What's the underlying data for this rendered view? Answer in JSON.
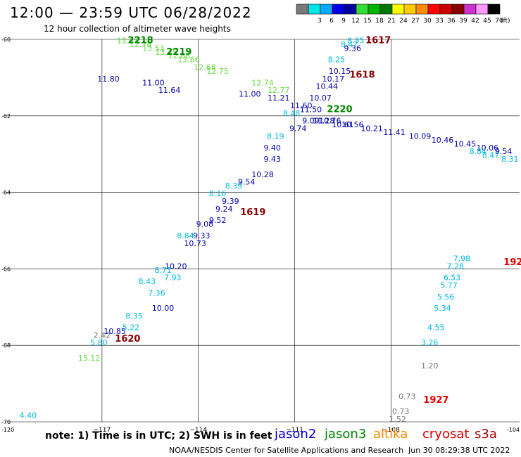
{
  "title": "12:00 — 23:59 UTC 06/28/2022",
  "subtitle": "12 hour collection of altimeter wave heights",
  "legend": {
    "unit": "(ft)",
    "bins": [
      {
        "color": "#7a7a7a",
        "label": ""
      },
      {
        "color": "#00e6e6",
        "label": "3"
      },
      {
        "color": "#00aaff",
        "label": "6"
      },
      {
        "color": "#0000e6",
        "label": "9"
      },
      {
        "color": "#0000a0",
        "label": "12"
      },
      {
        "color": "#33dd33",
        "label": "15"
      },
      {
        "color": "#00b400",
        "label": "18"
      },
      {
        "color": "#007800",
        "label": "21"
      },
      {
        "color": "#ffff00",
        "label": "24"
      },
      {
        "color": "#ffcc00",
        "label": "27"
      },
      {
        "color": "#ff8c00",
        "label": "30"
      },
      {
        "color": "#ff0000",
        "label": "33"
      },
      {
        "color": "#cc0000",
        "label": "36"
      },
      {
        "color": "#880000",
        "label": "39"
      },
      {
        "color": "#cc33cc",
        "label": "42"
      },
      {
        "color": "#ff99ff",
        "label": "45"
      },
      {
        "color": "#000000",
        "label": "70"
      }
    ]
  },
  "note": "note: 1) Time is in UTC; 2) SWH is in feet",
  "satellites": [
    {
      "name": "jason2",
      "color": "#0000cc"
    },
    {
      "name": "jason3",
      "color": "#008800"
    },
    {
      "name": "altika",
      "color": "#ff8800"
    },
    {
      "name": "cryosat",
      "color": "#dd0000"
    },
    {
      "name": "s3a",
      "color": "#aa0000"
    }
  ],
  "credit": "NOAA/NESDIS Center for Satellite Applications and Research",
  "timestamp": "Jun 30 08:29:38 UTC 2022",
  "chart_data": {
    "type": "scatter",
    "xlim": [
      -120,
      -104
    ],
    "ylim": [
      -70,
      -60
    ],
    "x_ticks": [
      -117,
      -114,
      -111,
      -108
    ],
    "y_ticks": [
      -60,
      -62,
      -64,
      -66,
      -68,
      -70
    ],
    "x_tick_labels": [
      "−117",
      "−114",
      "−111",
      "−108"
    ],
    "y_tick_labels": [
      "-60",
      "-62",
      "-64",
      "-66",
      "-68",
      "-70"
    ],
    "corner_labels": {
      "x_left": "-120",
      "x_right": "-104"
    },
    "grid": true,
    "series": [
      {
        "color": "#0000aa",
        "points": [
          {
            "lon": -110.5,
            "lat": -62.2,
            "label": "9.09"
          },
          {
            "lon": -110.1,
            "lat": -62.2,
            "label": "11.28"
          },
          {
            "lon": -109.2,
            "lat": -62.3,
            "label": "10.56"
          },
          {
            "lon": -108.6,
            "lat": -62.4,
            "label": "10.21"
          },
          {
            "lon": -107.9,
            "lat": -62.5,
            "label": "11.41"
          },
          {
            "lon": -107.1,
            "lat": -62.6,
            "label": "10.09"
          },
          {
            "lon": -106.4,
            "lat": -62.7,
            "label": "10.46"
          },
          {
            "lon": -105.7,
            "lat": -62.8,
            "label": "10.45"
          },
          {
            "lon": -105.0,
            "lat": -62.9,
            "label": "10.06"
          },
          {
            "lon": -104.5,
            "lat": -63.0,
            "label": "9.54"
          },
          {
            "lon": -109.2,
            "lat": -60.3,
            "label": "9.36"
          },
          {
            "lon": -109.6,
            "lat": -60.9,
            "label": "10.15"
          },
          {
            "lon": -109.8,
            "lat": -61.1,
            "label": "10.17"
          },
          {
            "lon": -110.0,
            "lat": -61.3,
            "label": "10.44"
          },
          {
            "lon": -110.2,
            "lat": -61.6,
            "label": "10.07"
          },
          {
            "lon": -110.9,
            "lat": -62.4,
            "label": "9.74"
          },
          {
            "lon": -111.7,
            "lat": -62.9,
            "label": "9.40"
          },
          {
            "lon": -111.7,
            "lat": -63.2,
            "label": "9.43"
          },
          {
            "lon": -112.0,
            "lat": -63.6,
            "label": "10.28"
          },
          {
            "lon": -112.5,
            "lat": -63.8,
            "label": "9.54"
          },
          {
            "lon": -113.0,
            "lat": -64.3,
            "label": "9.39"
          },
          {
            "lon": -113.2,
            "lat": -64.5,
            "label": "9.24"
          },
          {
            "lon": -113.4,
            "lat": -64.8,
            "label": "9.52"
          },
          {
            "lon": -113.8,
            "lat": -64.9,
            "label": "9.08"
          },
          {
            "lon": -113.9,
            "lat": -65.2,
            "label": "9.33"
          },
          {
            "lon": -114.1,
            "lat": -65.4,
            "label": "10.73"
          },
          {
            "lon": -114.7,
            "lat": -66.0,
            "label": "10.20"
          },
          {
            "lon": -116.6,
            "lat": -67.7,
            "label": "10.85"
          },
          {
            "lon": -116.8,
            "lat": -61.1,
            "label": "11.80"
          },
          {
            "lon": -115.4,
            "lat": -61.2,
            "label": "11.00"
          },
          {
            "lon": -114.9,
            "lat": -61.4,
            "label": "11.64"
          },
          {
            "lon": -112.4,
            "lat": -61.5,
            "label": "11.00"
          },
          {
            "lon": -111.5,
            "lat": -61.6,
            "label": "11.21"
          },
          {
            "lon": -110.8,
            "lat": -61.8,
            "label": "11.60"
          },
          {
            "lon": -110.5,
            "lat": -61.9,
            "label": "11.50"
          },
          {
            "lon": -109.9,
            "lat": -62.2,
            "label": "10.76"
          },
          {
            "lon": -109.5,
            "lat": -62.3,
            "label": "10.61"
          },
          {
            "lon": -115.1,
            "lat": -67.1,
            "label": "10.00"
          }
        ]
      },
      {
        "color": "#00bbdd",
        "points": [
          {
            "lon": -109.1,
            "lat": -60.1,
            "label": "8.35"
          },
          {
            "lon": -109.3,
            "lat": -60.2,
            "label": "8.47"
          },
          {
            "lon": -109.7,
            "lat": -60.6,
            "label": "8.25"
          },
          {
            "lon": -111.1,
            "lat": -62.0,
            "label": "8.48"
          },
          {
            "lon": -111.6,
            "lat": -62.6,
            "label": "8.19"
          },
          {
            "lon": -112.9,
            "lat": -63.9,
            "label": "8.39"
          },
          {
            "lon": -113.4,
            "lat": -64.1,
            "label": "8.16"
          },
          {
            "lon": -114.4,
            "lat": -65.2,
            "label": "8.84"
          },
          {
            "lon": -115.1,
            "lat": -66.1,
            "label": "8.71"
          },
          {
            "lon": -114.8,
            "lat": -66.3,
            "label": "7.93"
          },
          {
            "lon": -115.6,
            "lat": -66.4,
            "label": "8.43"
          },
          {
            "lon": -115.3,
            "lat": -66.7,
            "label": "7.36"
          },
          {
            "lon": -116.0,
            "lat": -67.3,
            "label": "8.35"
          },
          {
            "lon": -116.1,
            "lat": -67.6,
            "label": "5.22"
          },
          {
            "lon": -117.1,
            "lat": -68.0,
            "label": "5.80"
          },
          {
            "lon": -119.3,
            "lat": -69.9,
            "label": "4.40"
          },
          {
            "lon": -105.3,
            "lat": -63.0,
            "label": "8.84"
          },
          {
            "lon": -104.9,
            "lat": -63.1,
            "label": "8.47"
          },
          {
            "lon": -104.3,
            "lat": -63.2,
            "label": "8.31"
          },
          {
            "lon": -105.8,
            "lat": -65.8,
            "label": "7.98"
          },
          {
            "lon": -106.0,
            "lat": -66.0,
            "label": "7.28"
          },
          {
            "lon": -106.1,
            "lat": -66.3,
            "label": "6.53"
          },
          {
            "lon": -106.2,
            "lat": -66.5,
            "label": "5.77"
          },
          {
            "lon": -106.3,
            "lat": -66.8,
            "label": "5.56"
          },
          {
            "lon": -106.4,
            "lat": -67.1,
            "label": "5.34"
          },
          {
            "lon": -106.6,
            "lat": -67.6,
            "label": "4.55"
          },
          {
            "lon": -106.8,
            "lat": -68.0,
            "label": "3.26"
          }
        ]
      },
      {
        "color": "#66dd44",
        "points": [
          {
            "lon": -116.2,
            "lat": -60.1,
            "label": "13.63"
          },
          {
            "lon": -115.8,
            "lat": -60.2,
            "label": "12.78"
          },
          {
            "lon": -115.4,
            "lat": -60.3,
            "label": "13.53"
          },
          {
            "lon": -115.0,
            "lat": -60.4,
            "label": "13.45"
          },
          {
            "lon": -114.6,
            "lat": -60.5,
            "label": "12.88"
          },
          {
            "lon": -114.3,
            "lat": -60.6,
            "label": "13.66"
          },
          {
            "lon": -113.8,
            "lat": -60.8,
            "label": "12.68"
          },
          {
            "lon": -113.4,
            "lat": -60.9,
            "label": "12.75"
          },
          {
            "lon": -112.0,
            "lat": -61.2,
            "label": "12.74"
          },
          {
            "lon": -111.5,
            "lat": -61.4,
            "label": "12.77"
          },
          {
            "lon": -117.4,
            "lat": -68.4,
            "label": "15.12"
          }
        ]
      },
      {
        "color": "#777777",
        "points": [
          {
            "lon": -117.0,
            "lat": -67.8,
            "label": "2.42"
          },
          {
            "lon": -106.8,
            "lat": -68.6,
            "label": "1.20"
          },
          {
            "lon": -107.5,
            "lat": -69.4,
            "label": "0.73"
          },
          {
            "lon": -107.7,
            "lat": -69.8,
            "label": "0.73"
          },
          {
            "lon": -107.8,
            "lat": -70.0,
            "label": "1.52"
          }
        ]
      }
    ],
    "pass_labels": [
      {
        "lon": -115.8,
        "lat": -60.1,
        "label": "2218",
        "color": "#008800"
      },
      {
        "lon": -114.6,
        "lat": -60.4,
        "label": "2219",
        "color": "#008800"
      },
      {
        "lon": -109.6,
        "lat": -61.9,
        "label": "2220",
        "color": "#008800"
      },
      {
        "lon": -108.4,
        "lat": -60.1,
        "label": "1617",
        "color": "#880000"
      },
      {
        "lon": -108.9,
        "lat": -61.0,
        "label": "1618",
        "color": "#880000"
      },
      {
        "lon": -112.3,
        "lat": -64.6,
        "label": "1619",
        "color": "#880000"
      },
      {
        "lon": -116.2,
        "lat": -67.9,
        "label": "1620",
        "color": "#880000"
      },
      {
        "lon": -104.2,
        "lat": -65.9,
        "label": "192",
        "color": "#dd0000"
      },
      {
        "lon": -106.6,
        "lat": -69.5,
        "label": "1927",
        "color": "#dd0000"
      }
    ]
  }
}
